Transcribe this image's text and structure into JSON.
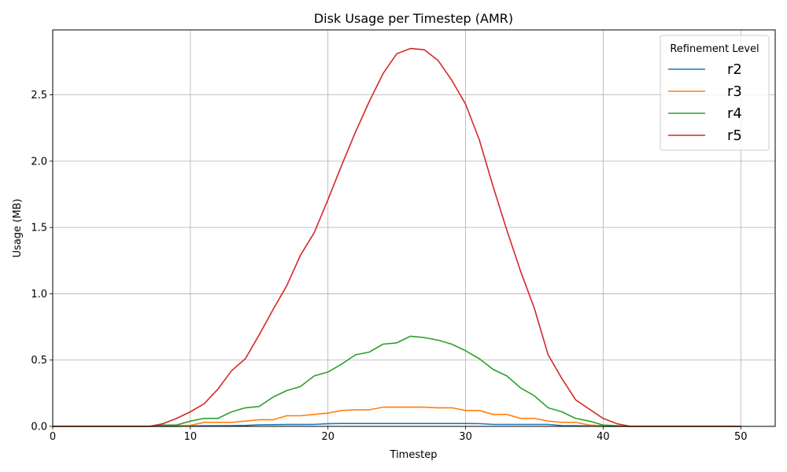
{
  "chart_data": {
    "type": "line",
    "title": "Disk Usage per Timestep (AMR)",
    "xlabel": "Timestep",
    "ylabel": "Usage (MB)",
    "xlim": [
      0,
      52.5
    ],
    "ylim": [
      0,
      2.99
    ],
    "xticks": [
      0,
      10,
      20,
      30,
      40,
      50
    ],
    "xtick_labels": [
      "0",
      "10",
      "20",
      "30",
      "40",
      "50"
    ],
    "yticks": [
      0,
      0.5,
      1.0,
      1.5,
      2.0,
      2.5
    ],
    "ytick_labels": [
      "0.0",
      "0.5",
      "1.0",
      "1.5",
      "2.0",
      "2.5"
    ],
    "grid": true,
    "legend": {
      "title": "Refinement Level",
      "placement": "top-right"
    },
    "x": [
      0,
      1,
      2,
      3,
      4,
      5,
      6,
      7,
      8,
      9,
      10,
      11,
      12,
      13,
      14,
      15,
      16,
      17,
      18,
      19,
      20,
      21,
      22,
      23,
      24,
      25,
      26,
      27,
      28,
      29,
      30,
      31,
      32,
      33,
      34,
      35,
      36,
      37,
      38,
      39,
      40,
      41,
      42,
      43,
      44,
      45,
      46,
      47,
      48,
      49,
      50
    ],
    "series": [
      {
        "name": "r2",
        "color": "#1f77b4",
        "values": [
          0,
          0,
          0,
          0,
          0,
          0,
          0,
          0,
          0,
          0,
          0.003,
          0.005,
          0.005,
          0.006,
          0.007,
          0.012,
          0.013,
          0.014,
          0.014,
          0.015,
          0.02,
          0.022,
          0.022,
          0.022,
          0.022,
          0.022,
          0.022,
          0.022,
          0.022,
          0.022,
          0.022,
          0.021,
          0.015,
          0.015,
          0.015,
          0.015,
          0.015,
          0.006,
          0.005,
          0.003,
          0,
          0,
          0,
          0,
          0,
          0,
          0,
          0,
          0,
          0,
          0
        ]
      },
      {
        "name": "r3",
        "color": "#ff7f0e",
        "values": [
          0,
          0,
          0,
          0,
          0,
          0,
          0,
          0,
          0.005,
          0.005,
          0.008,
          0.03,
          0.03,
          0.03,
          0.04,
          0.05,
          0.05,
          0.08,
          0.08,
          0.09,
          0.1,
          0.12,
          0.125,
          0.125,
          0.145,
          0.145,
          0.145,
          0.145,
          0.14,
          0.14,
          0.12,
          0.12,
          0.09,
          0.09,
          0.06,
          0.06,
          0.04,
          0.03,
          0.03,
          0.01,
          0.005,
          0,
          0,
          0,
          0,
          0,
          0,
          0,
          0,
          0,
          0
        ]
      },
      {
        "name": "r4",
        "color": "#2ca02c",
        "values": [
          0,
          0,
          0,
          0,
          0,
          0,
          0,
          0,
          0.01,
          0.01,
          0.04,
          0.06,
          0.06,
          0.11,
          0.14,
          0.15,
          0.22,
          0.27,
          0.3,
          0.38,
          0.41,
          0.47,
          0.54,
          0.56,
          0.62,
          0.63,
          0.68,
          0.67,
          0.65,
          0.62,
          0.57,
          0.51,
          0.43,
          0.38,
          0.29,
          0.23,
          0.14,
          0.11,
          0.06,
          0.04,
          0.01,
          0.005,
          0,
          0,
          0,
          0,
          0,
          0,
          0,
          0,
          0
        ]
      },
      {
        "name": "r5",
        "color": "#d62728",
        "values": [
          0,
          0,
          0,
          0,
          0,
          0,
          0,
          0,
          0.02,
          0.06,
          0.11,
          0.17,
          0.28,
          0.42,
          0.51,
          0.69,
          0.88,
          1.06,
          1.29,
          1.46,
          1.71,
          1.97,
          2.22,
          2.45,
          2.66,
          2.81,
          2.85,
          2.84,
          2.76,
          2.61,
          2.43,
          2.16,
          1.81,
          1.48,
          1.17,
          0.89,
          0.54,
          0.36,
          0.2,
          0.13,
          0.06,
          0.02,
          0,
          0,
          0,
          0,
          0,
          0,
          0,
          0,
          0
        ]
      }
    ]
  }
}
